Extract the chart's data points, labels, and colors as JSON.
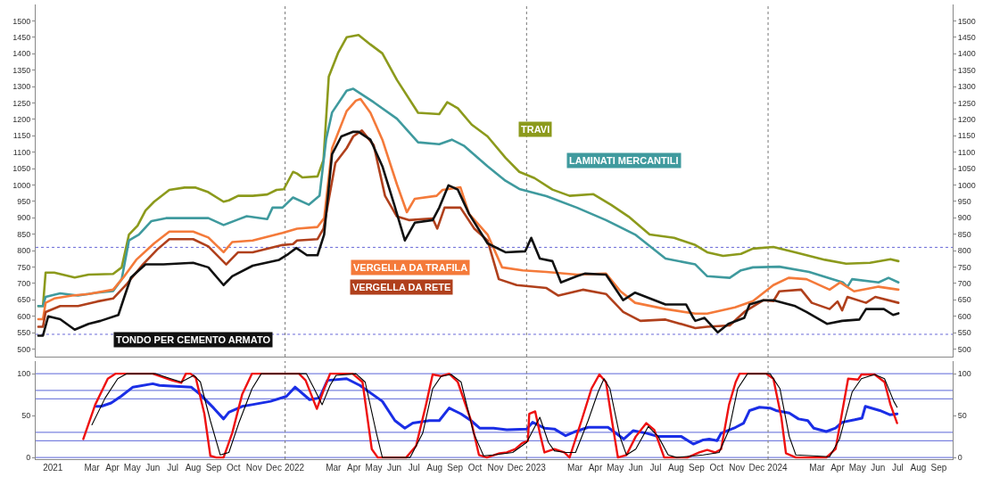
{
  "chart_data": [
    {
      "type": "line",
      "xlim": [
        "2020-12-20",
        "2024-10-06"
      ],
      "ylim": [
        477,
        1550
      ],
      "yticks": [
        500,
        550,
        600,
        650,
        700,
        750,
        800,
        850,
        900,
        950,
        1000,
        1050,
        1100,
        1150,
        1200,
        1250,
        1300,
        1350,
        1400,
        1450,
        1500
      ],
      "y2lim": [
        477,
        1550
      ],
      "y2ticks": [
        500,
        550,
        600,
        650,
        700,
        750,
        800,
        850,
        900,
        950,
        1000,
        1050,
        1100,
        1150,
        1200,
        1250,
        1300,
        1350,
        1400,
        1450,
        1500
      ],
      "tick_labels": "y",
      "marker": "none",
      "line_style": "solid",
      "ref_lines": [
        {
          "axis": "x",
          "value": "2022-01-01",
          "color": "#777777",
          "line_style": "dotted"
        },
        {
          "axis": "x",
          "value": "2023-01-01",
          "color": "#777777",
          "line_style": "dotted"
        },
        {
          "axis": "x",
          "value": "2024-01-01",
          "color": "#777777",
          "line_style": "dotted"
        },
        {
          "axis": "y",
          "value": 810,
          "color": "#6a6ad8",
          "line_style": "dotted"
        },
        {
          "axis": "y",
          "value": 545,
          "color": "#6a6ad8",
          "line_style": "dotted"
        }
      ],
      "series": [
        {
          "name": "TRAVI",
          "color": "#8c9a1c",
          "x": [
            "2020-12-24",
            "2020-12-31",
            "2021-01-04",
            "2021-01-17",
            "2021-02-17",
            "2021-03-10",
            "2021-04-16",
            "2021-04-29",
            "2021-05-10",
            "2021-05-23",
            "2021-06-04",
            "2021-06-17",
            "2021-07-10",
            "2021-08-02",
            "2021-08-19",
            "2021-09-07",
            "2021-09-30",
            "2021-10-08",
            "2021-10-22",
            "2021-11-13",
            "2021-12-05",
            "2021-12-19",
            "2021-12-30",
            "2022-01-13",
            "2022-01-19",
            "2022-01-27",
            "2022-02-19",
            "2022-02-28",
            "2022-03-08",
            "2022-03-22",
            "2022-04-04",
            "2022-04-22",
            "2022-05-10",
            "2022-05-28",
            "2022-06-19",
            "2022-07-21",
            "2022-08-22",
            "2022-09-03",
            "2022-09-19",
            "2022-10-10",
            "2022-11-03",
            "2022-11-30",
            "2022-12-21",
            "2023-01-13",
            "2023-02-09",
            "2023-03-07",
            "2023-04-12",
            "2023-05-09",
            "2023-06-04",
            "2023-07-06",
            "2023-08-12",
            "2023-09-13",
            "2023-10-01",
            "2023-10-25",
            "2023-11-21",
            "2023-12-09",
            "2024-01-09",
            "2024-02-11",
            "2024-03-27",
            "2024-04-28",
            "2024-06-03",
            "2024-07-04",
            "2024-07-16"
          ],
          "values": [
            631,
            631,
            733,
            733,
            718,
            727,
            729,
            749,
            849,
            876,
            922,
            949,
            985,
            992,
            992,
            978,
            949,
            953,
            967,
            967,
            971,
            985,
            987,
            1040,
            1035,
            1023,
            1026,
            1076,
            1330,
            1402,
            1450,
            1457,
            1428,
            1401,
            1320,
            1220,
            1216,
            1252,
            1234,
            1184,
            1148,
            1083,
            1040,
            1021,
            986,
            967,
            972,
            939,
            904,
            849,
            839,
            817,
            795,
            784,
            790,
            806,
            811,
            795,
            772,
            760,
            763,
            774,
            768
          ]
        },
        {
          "name": "LAMINATI MERCANTILI",
          "color": "#3f9a9e",
          "x": [
            "2020-12-24",
            "2020-12-31",
            "2021-01-04",
            "2021-01-26",
            "2021-02-22",
            "2021-03-23",
            "2021-04-16",
            "2021-04-29",
            "2021-05-10",
            "2021-05-25",
            "2021-06-13",
            "2021-07-05",
            "2021-09-07",
            "2021-09-30",
            "2021-10-22",
            "2021-11-04",
            "2021-12-05",
            "2021-12-13",
            "2021-12-28",
            "2022-01-13",
            "2022-02-06",
            "2022-02-22",
            "2022-03-04",
            "2022-03-13",
            "2022-04-04",
            "2022-04-14",
            "2022-05-15",
            "2022-06-19",
            "2022-07-21",
            "2022-08-22",
            "2022-09-10",
            "2022-09-28",
            "2022-11-03",
            "2022-11-30",
            "2022-12-21",
            "2023-01-31",
            "2023-03-18",
            "2023-05-01",
            "2023-06-14",
            "2023-07-30",
            "2023-09-13",
            "2023-10-01",
            "2023-11-04",
            "2023-11-21",
            "2023-12-09",
            "2024-01-18",
            "2024-03-03",
            "2024-04-23",
            "2024-04-30",
            "2024-05-07",
            "2024-06-16",
            "2024-07-01",
            "2024-07-16"
          ],
          "values": [
            631,
            631,
            659,
            670,
            663,
            672,
            677,
            713,
            831,
            849,
            890,
            899,
            899,
            878,
            895,
            905,
            896,
            931,
            931,
            962,
            940,
            967,
            1139,
            1221,
            1287,
            1293,
            1252,
            1202,
            1130,
            1124,
            1138,
            1120,
            1057,
            1013,
            988,
            966,
            931,
            893,
            849,
            776,
            758,
            722,
            717,
            740,
            749,
            751,
            735,
            703,
            690,
            713,
            703,
            717,
            703
          ]
        },
        {
          "name": "VERGELLA DA TRAFILA",
          "color": "#f47a3a",
          "x": [
            "2020-12-24",
            "2020-12-31",
            "2021-01-04",
            "2021-01-17",
            "2021-02-13",
            "2021-03-10",
            "2021-04-16",
            "2021-05-03",
            "2021-05-21",
            "2021-06-17",
            "2021-07-10",
            "2021-08-15",
            "2021-09-07",
            "2021-09-30",
            "2021-10-13",
            "2021-11-13",
            "2021-12-28",
            "2022-01-19",
            "2022-02-19",
            "2022-03-01",
            "2022-03-13",
            "2022-04-04",
            "2022-04-18",
            "2022-04-25",
            "2022-05-10",
            "2022-05-28",
            "2022-06-19",
            "2022-07-04",
            "2022-07-16",
            "2022-08-18",
            "2022-08-27",
            "2022-09-23",
            "2022-10-06",
            "2022-11-03",
            "2022-11-25",
            "2022-12-26",
            "2023-01-31",
            "2023-03-18",
            "2023-05-01",
            "2023-05-23",
            "2023-06-14",
            "2023-07-30",
            "2023-09-13",
            "2023-10-01",
            "2023-11-12",
            "2023-12-09",
            "2024-01-09",
            "2024-02-01",
            "2024-02-28",
            "2024-04-03",
            "2024-04-19",
            "2024-05-10",
            "2024-06-16",
            "2024-07-16"
          ],
          "values": [
            591,
            591,
            641,
            654,
            663,
            668,
            681,
            722,
            772,
            822,
            858,
            858,
            840,
            795,
            826,
            831,
            854,
            867,
            872,
            899,
            1112,
            1225,
            1257,
            1262,
            1220,
            1138,
            1002,
            917,
            958,
            967,
            985,
            993,
            912,
            849,
            749,
            740,
            735,
            727,
            730,
            676,
            641,
            622,
            608,
            608,
            627,
            646,
            695,
            717,
            713,
            681,
            703,
            676,
            690,
            681
          ]
        },
        {
          "name": "VERGELLA DA RETE",
          "color": "#b0401c",
          "x": [
            "2020-12-24",
            "2020-12-31",
            "2021-01-04",
            "2021-01-26",
            "2021-02-22",
            "2021-03-23",
            "2021-04-16",
            "2021-05-07",
            "2021-05-31",
            "2021-06-22",
            "2021-07-10",
            "2021-08-15",
            "2021-09-07",
            "2021-10-04",
            "2021-10-22",
            "2021-11-13",
            "2021-12-28",
            "2022-01-13",
            "2022-01-19",
            "2022-02-19",
            "2022-02-28",
            "2022-03-18",
            "2022-04-04",
            "2022-04-14",
            "2022-04-27",
            "2022-05-15",
            "2022-06-01",
            "2022-06-19",
            "2022-07-07",
            "2022-08-12",
            "2022-08-19",
            "2022-08-30",
            "2022-09-23",
            "2022-10-14",
            "2022-11-03",
            "2022-11-20",
            "2022-12-17",
            "2023-01-31",
            "2023-02-18",
            "2023-03-27",
            "2023-05-01",
            "2023-05-27",
            "2023-06-22",
            "2023-07-30",
            "2023-09-13",
            "2023-10-01",
            "2023-11-04",
            "2023-11-26",
            "2023-12-25",
            "2024-01-09",
            "2024-01-18",
            "2024-02-20",
            "2024-03-07",
            "2024-04-03",
            "2024-04-15",
            "2024-04-22",
            "2024-04-30",
            "2024-05-28",
            "2024-06-11",
            "2024-07-16"
          ],
          "values": [
            568,
            568,
            613,
            631,
            631,
            645,
            654,
            699,
            758,
            804,
            835,
            835,
            813,
            758,
            795,
            795,
            817,
            820,
            831,
            835,
            867,
            1067,
            1112,
            1148,
            1166,
            1121,
            967,
            904,
            893,
            898,
            867,
            931,
            931,
            867,
            831,
            713,
            695,
            686,
            663,
            681,
            668,
            613,
            586,
            590,
            564,
            568,
            572,
            613,
            649,
            646,
            676,
            681,
            641,
            622,
            645,
            618,
            659,
            641,
            659,
            641
          ]
        },
        {
          "name": "TONDO PER CEMENTO ARMATO",
          "color": "#111111",
          "x": [
            "2020-12-24",
            "2020-12-31",
            "2021-01-08",
            "2021-01-26",
            "2021-02-17",
            "2021-03-10",
            "2021-03-28",
            "2021-04-24",
            "2021-05-03",
            "2021-05-13",
            "2021-06-04",
            "2021-07-01",
            "2021-08-15",
            "2021-09-07",
            "2021-09-30",
            "2021-10-13",
            "2021-11-13",
            "2021-12-23",
            "2022-01-06",
            "2022-01-18",
            "2022-02-03",
            "2022-02-19",
            "2022-03-01",
            "2022-03-13",
            "2022-03-27",
            "2022-04-14",
            "2022-04-22",
            "2022-05-10",
            "2022-05-28",
            "2022-06-15",
            "2022-07-01",
            "2022-07-16",
            "2022-08-12",
            "2022-08-22",
            "2022-09-05",
            "2022-09-19",
            "2022-10-06",
            "2022-11-03",
            "2022-11-30",
            "2022-12-30",
            "2023-01-08",
            "2023-01-21",
            "2023-02-09",
            "2023-02-22",
            "2023-03-18",
            "2023-03-30",
            "2023-05-01",
            "2023-05-27",
            "2023-06-14",
            "2023-07-30",
            "2023-08-30",
            "2023-09-10",
            "2023-09-13",
            "2023-09-27",
            "2023-10-17",
            "2023-11-02",
            "2023-11-26",
            "2023-12-04",
            "2023-12-25",
            "2024-01-09",
            "2024-02-11",
            "2024-02-28",
            "2024-03-30",
            "2024-04-22",
            "2024-05-18",
            "2024-05-28",
            "2024-06-24",
            "2024-07-08",
            "2024-07-16"
          ],
          "values": [
            541,
            541,
            600,
            591,
            559,
            577,
            586,
            604,
            659,
            718,
            758,
            758,
            763,
            749,
            695,
            722,
            754,
            772,
            790,
            808,
            786,
            786,
            849,
            1094,
            1148,
            1162,
            1162,
            1138,
            1057,
            940,
            831,
            885,
            893,
            931,
            999,
            986,
            912,
            822,
            795,
            798,
            839,
            776,
            768,
            703,
            722,
            730,
            727,
            649,
            672,
            636,
            636,
            595,
            586,
            595,
            551,
            577,
            595,
            636,
            649,
            649,
            631,
            613,
            577,
            586,
            590,
            622,
            622,
            604,
            609
          ]
        }
      ]
    },
    {
      "type": "line",
      "xlim": [
        "2020-12-20",
        "2024-10-06"
      ],
      "ylim": [
        -2,
        115
      ],
      "yticks": [
        0,
        50,
        100
      ],
      "y2lim": [
        -2,
        115
      ],
      "y2ticks": [
        0,
        50,
        100
      ],
      "marker": "none",
      "line_style": "solid",
      "xticks": [
        {
          "value": "2021-01-15",
          "label": "2021"
        },
        {
          "value": "2021-03-15",
          "label": "Mar"
        },
        {
          "value": "2021-04-15",
          "label": "Apr"
        },
        {
          "value": "2021-05-15",
          "label": "May"
        },
        {
          "value": "2021-06-15",
          "label": "Jun"
        },
        {
          "value": "2021-07-15",
          "label": "Jul"
        },
        {
          "value": "2021-08-15",
          "label": "Aug"
        },
        {
          "value": "2021-09-15",
          "label": "Sep"
        },
        {
          "value": "2021-10-15",
          "label": "Oct"
        },
        {
          "value": "2021-11-15",
          "label": "Nov"
        },
        {
          "value": "2021-12-15",
          "label": "Dec"
        },
        {
          "value": "2022-01-15",
          "label": "2022"
        },
        {
          "value": "2022-03-15",
          "label": "Mar"
        },
        {
          "value": "2022-04-15",
          "label": "Apr"
        },
        {
          "value": "2022-05-15",
          "label": "May"
        },
        {
          "value": "2022-06-15",
          "label": "Jun"
        },
        {
          "value": "2022-07-15",
          "label": "Jul"
        },
        {
          "value": "2022-08-15",
          "label": "Aug"
        },
        {
          "value": "2022-09-15",
          "label": "Sep"
        },
        {
          "value": "2022-10-15",
          "label": "Oct"
        },
        {
          "value": "2022-11-15",
          "label": "Nov"
        },
        {
          "value": "2022-12-15",
          "label": "Dec"
        },
        {
          "value": "2023-01-15",
          "label": "2023"
        },
        {
          "value": "2023-03-15",
          "label": "Mar"
        },
        {
          "value": "2023-04-15",
          "label": "Apr"
        },
        {
          "value": "2023-05-15",
          "label": "May"
        },
        {
          "value": "2023-06-15",
          "label": "Jun"
        },
        {
          "value": "2023-07-15",
          "label": "Jul"
        },
        {
          "value": "2023-08-15",
          "label": "Aug"
        },
        {
          "value": "2023-09-15",
          "label": "Sep"
        },
        {
          "value": "2023-10-15",
          "label": "Oct"
        },
        {
          "value": "2023-11-15",
          "label": "Nov"
        },
        {
          "value": "2023-12-15",
          "label": "Dec"
        },
        {
          "value": "2024-01-15",
          "label": "2024"
        },
        {
          "value": "2024-03-15",
          "label": "Mar"
        },
        {
          "value": "2024-04-15",
          "label": "Apr"
        },
        {
          "value": "2024-05-15",
          "label": "May"
        },
        {
          "value": "2024-06-15",
          "label": "Jun"
        },
        {
          "value": "2024-07-15",
          "label": "Jul"
        },
        {
          "value": "2024-08-15",
          "label": "Aug"
        },
        {
          "value": "2024-09-15",
          "label": "Sep"
        }
      ],
      "ref_lines": [
        {
          "axis": "y",
          "value": 100,
          "color": "#5a64d8"
        },
        {
          "axis": "y",
          "value": 80,
          "color": "#5a64d8"
        },
        {
          "axis": "y",
          "value": 70,
          "color": "#5a64d8"
        },
        {
          "axis": "y",
          "value": 30,
          "color": "#5a64d8"
        },
        {
          "axis": "y",
          "value": 20,
          "color": "#5a64d8"
        },
        {
          "axis": "y",
          "value": 0,
          "color": "#5a64d8"
        },
        {
          "axis": "x",
          "value": "2022-01-01",
          "color": "#777777",
          "line_style": "dotted"
        },
        {
          "axis": "x",
          "value": "2023-01-01",
          "color": "#777777",
          "line_style": "dotted"
        },
        {
          "axis": "x",
          "value": "2024-01-01",
          "color": "#777777",
          "line_style": "dotted"
        }
      ],
      "series": [
        {
          "color": "#1a2ee6",
          "x": [
            "2021-03-22",
            "2021-03-29",
            "2021-04-13",
            "2021-04-28",
            "2021-05-16",
            "2021-06-15",
            "2021-06-25",
            "2021-07-19",
            "2021-08-12",
            "2021-08-26",
            "2021-09-15",
            "2021-09-30",
            "2021-10-08",
            "2021-10-28",
            "2021-11-12",
            "2021-12-10",
            "2022-01-03",
            "2022-01-16",
            "2022-02-07",
            "2022-02-22",
            "2022-03-06",
            "2022-04-04",
            "2022-04-24",
            "2022-05-28",
            "2022-06-16",
            "2022-07-01",
            "2022-07-13",
            "2022-08-07",
            "2022-08-22",
            "2022-09-06",
            "2022-09-24",
            "2022-10-09",
            "2022-10-22",
            "2022-11-12",
            "2022-12-02",
            "2023-01-01",
            "2023-01-10",
            "2023-01-28",
            "2023-02-12",
            "2023-03-01",
            "2023-03-16",
            "2023-04-04",
            "2023-05-04",
            "2023-05-28",
            "2023-06-11",
            "2023-07-01",
            "2023-07-19",
            "2023-08-23",
            "2023-09-10",
            "2023-09-25",
            "2023-10-04",
            "2023-10-16",
            "2023-10-22",
            "2023-11-13",
            "2023-11-25",
            "2023-12-04",
            "2023-12-19",
            "2024-01-04",
            "2024-01-13",
            "2024-02-02",
            "2024-02-16",
            "2024-03-01",
            "2024-03-10",
            "2024-03-29",
            "2024-04-12",
            "2024-04-22",
            "2024-05-11",
            "2024-05-22",
            "2024-05-27",
            "2024-06-18",
            "2024-07-03",
            "2024-07-14"
          ],
          "values": [
            61,
            61,
            65,
            73,
            84,
            88,
            86,
            85,
            84,
            75,
            59,
            46,
            54,
            61,
            63,
            67,
            73,
            84,
            69,
            71,
            92,
            94,
            86,
            67,
            44,
            35,
            41,
            44,
            44,
            59,
            52,
            44,
            35,
            35,
            33,
            34,
            42,
            35,
            34,
            26,
            31,
            36,
            36,
            22,
            32,
            29,
            25,
            25,
            16,
            21,
            22,
            20,
            29,
            36,
            41,
            56,
            60,
            59,
            56,
            53,
            46,
            44,
            35,
            31,
            35,
            42,
            45,
            47,
            61,
            56,
            51,
            52
          ]
        },
        {
          "color": "#ee1111",
          "x": [
            "2021-03-02",
            "2021-03-20",
            "2021-04-08",
            "2021-04-20",
            "2021-06-15",
            "2021-07-14",
            "2021-07-28",
            "2021-08-04",
            "2021-08-11",
            "2021-08-19",
            "2021-09-01",
            "2021-09-10",
            "2021-09-19",
            "2021-09-30",
            "2021-10-13",
            "2021-10-28",
            "2021-11-12",
            "2022-01-22",
            "2022-02-01",
            "2022-02-18",
            "2022-03-01",
            "2022-03-10",
            "2022-04-13",
            "2022-04-28",
            "2022-05-12",
            "2022-05-21",
            "2022-07-03",
            "2022-07-18",
            "2022-08-02",
            "2022-08-12",
            "2022-08-25",
            "2022-09-06",
            "2022-09-19",
            "2022-10-09",
            "2022-10-21",
            "2022-11-02",
            "2022-11-21",
            "2022-12-02",
            "2022-12-15",
            "2022-12-25",
            "2023-01-03",
            "2023-01-05",
            "2023-01-14",
            "2023-01-21",
            "2023-01-28",
            "2023-02-12",
            "2023-02-27",
            "2023-03-07",
            "2023-03-25",
            "2023-04-09",
            "2023-04-21",
            "2023-05-01",
            "2023-05-10",
            "2023-05-19",
            "2023-06-01",
            "2023-06-15",
            "2023-07-01",
            "2023-07-13",
            "2023-07-28",
            "2023-09-01",
            "2023-09-19",
            "2023-10-01",
            "2023-10-13",
            "2023-10-22",
            "2023-11-03",
            "2023-11-13",
            "2023-11-19",
            "2023-12-29",
            "2024-01-09",
            "2024-01-21",
            "2024-01-28",
            "2024-02-12",
            "2024-03-29",
            "2024-04-12",
            "2024-05-01",
            "2024-05-16",
            "2024-05-21",
            "2024-06-10",
            "2024-06-25",
            "2024-07-04",
            "2024-07-14"
          ],
          "values": [
            22,
            63,
            94,
            100,
            100,
            92,
            89,
            100,
            100,
            95,
            52,
            2,
            0,
            0,
            29,
            75,
            100,
            100,
            92,
            58,
            82,
            100,
            100,
            90,
            10,
            0,
            0,
            14,
            63,
            99,
            97,
            100,
            90,
            44,
            3,
            0,
            5,
            6,
            10,
            17,
            20,
            52,
            55,
            29,
            6,
            10,
            6,
            0,
            44,
            82,
            99,
            90,
            44,
            0,
            3,
            25,
            41,
            33,
            0,
            0,
            6,
            9,
            6,
            10,
            63,
            90,
            100,
            100,
            94,
            48,
            5,
            0,
            0,
            10,
            94,
            93,
            99,
            99,
            90,
            63,
            41
          ]
        },
        {
          "color": "#000000",
          "x": [
            "2021-03-15",
            "2021-04-04",
            "2021-04-23",
            "2021-05-07",
            "2021-06-19",
            "2021-07-08",
            "2021-07-28",
            "2021-08-16",
            "2021-08-26",
            "2021-09-10",
            "2021-09-25",
            "2021-10-08",
            "2021-10-23",
            "2021-11-12",
            "2021-11-26",
            "2022-02-02",
            "2022-02-14",
            "2022-02-26",
            "2022-03-10",
            "2022-03-19",
            "2022-04-18",
            "2022-05-02",
            "2022-05-19",
            "2022-05-28",
            "2022-07-09",
            "2022-07-28",
            "2022-08-12",
            "2022-08-25",
            "2022-09-09",
            "2022-09-24",
            "2022-10-13",
            "2022-10-28",
            "2022-11-12",
            "2022-12-11",
            "2023-01-01",
            "2023-01-21",
            "2023-02-03",
            "2023-02-12",
            "2023-03-01",
            "2023-03-16",
            "2023-04-04",
            "2023-04-19",
            "2023-04-28",
            "2023-05-07",
            "2023-05-22",
            "2023-06-01",
            "2023-06-15",
            "2023-07-04",
            "2023-07-19",
            "2023-08-03",
            "2023-08-16",
            "2023-09-25",
            "2023-10-19",
            "2023-11-03",
            "2023-11-16",
            "2023-12-01",
            "2024-01-04",
            "2024-01-19",
            "2024-02-02",
            "2024-02-12",
            "2024-04-03",
            "2024-04-18",
            "2024-05-07",
            "2024-05-21",
            "2024-06-10",
            "2024-06-25",
            "2024-07-09",
            "2024-07-14"
          ],
          "values": [
            39,
            71,
            94,
            100,
            100,
            95,
            90,
            98,
            90,
            44,
            3,
            6,
            41,
            82,
            100,
            100,
            82,
            63,
            86,
            98,
            100,
            90,
            29,
            0,
            0,
            29,
            82,
            97,
            99,
            90,
            29,
            2,
            3,
            6,
            18,
            48,
            18,
            8,
            6,
            6,
            44,
            78,
            94,
            82,
            25,
            3,
            10,
            37,
            25,
            3,
            0,
            3,
            6,
            33,
            82,
            100,
            100,
            82,
            25,
            3,
            1,
            22,
            78,
            94,
            99,
            94,
            67,
            60
          ]
        }
      ]
    }
  ]
}
